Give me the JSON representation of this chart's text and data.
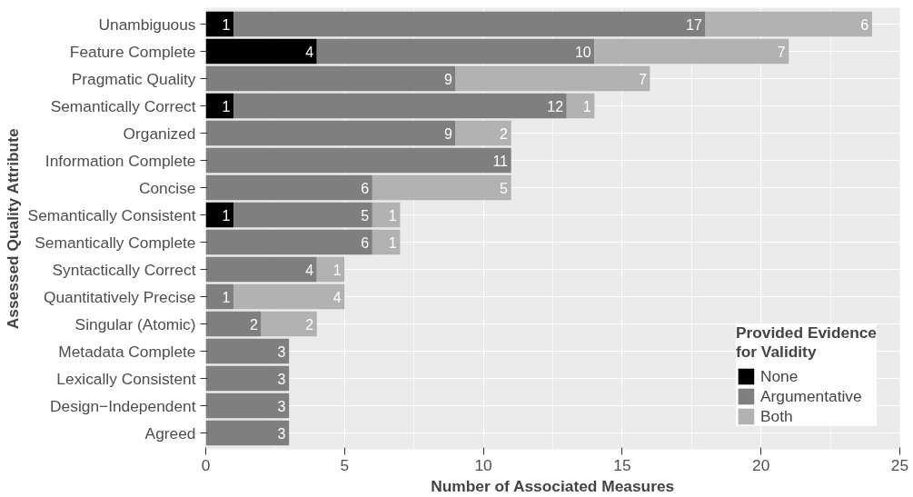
{
  "chart_data": {
    "type": "bar",
    "orientation": "horizontal",
    "stacked": true,
    "xlabel": "Number of Associated Measures",
    "ylabel": "Assessed Quality Attribute",
    "legend_title": "Provided Evidence for Validity",
    "categories": [
      "Unambiguous",
      "Feature Complete",
      "Pragmatic Quality",
      "Semantically Correct",
      "Organized",
      "Information Complete",
      "Concise",
      "Semantically Consistent",
      "Semantically Complete",
      "Syntactically Correct",
      "Quantitatively Precise",
      "Singular (Atomic)",
      "Metadata Complete",
      "Lexically Consistent",
      "Design−Independent",
      "Agreed"
    ],
    "series": [
      {
        "name": "None",
        "color": "#000000",
        "values": [
          1,
          4,
          null,
          1,
          null,
          null,
          null,
          1,
          null,
          null,
          null,
          null,
          null,
          null,
          null,
          null
        ]
      },
      {
        "name": "Argumentative",
        "color": "#7f7f7f",
        "values": [
          17,
          10,
          9,
          12,
          9,
          11,
          6,
          5,
          6,
          4,
          1,
          2,
          3,
          3,
          3,
          3
        ]
      },
      {
        "name": "Both",
        "color": "#b2b2b2",
        "values": [
          6,
          7,
          7,
          1,
          2,
          null,
          5,
          1,
          1,
          1,
          4,
          2,
          null,
          null,
          null,
          null
        ]
      }
    ],
    "xlim": [
      0,
      25
    ],
    "xticks": [
      0,
      5,
      10,
      15,
      20,
      25
    ],
    "grid": true,
    "legend": "bottom right",
    "data_labels": true
  }
}
